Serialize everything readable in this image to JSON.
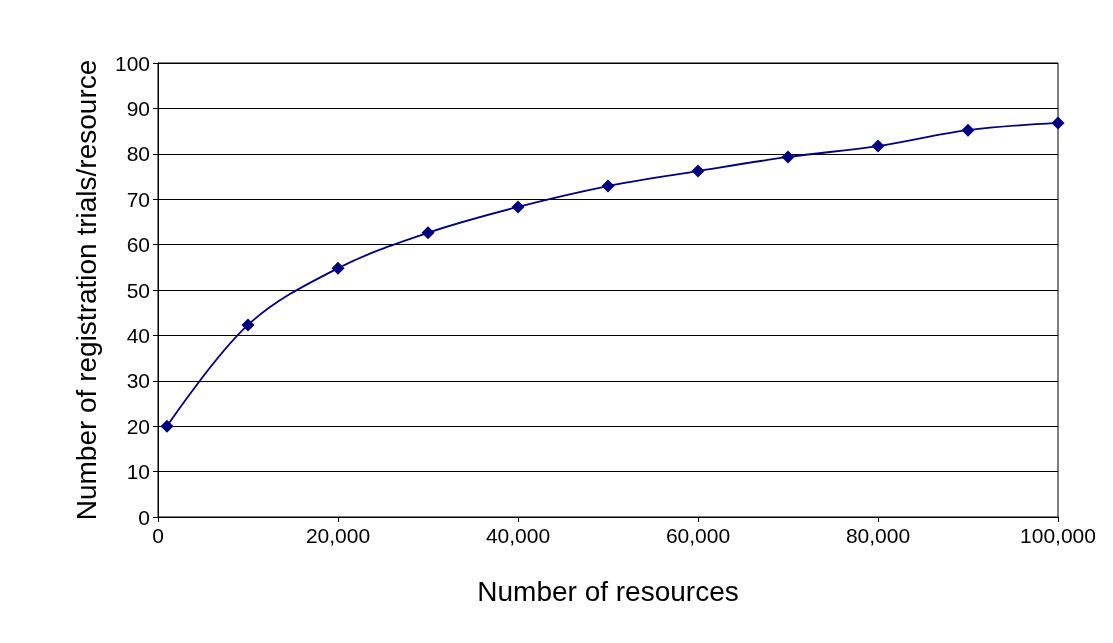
{
  "chart_data": {
    "type": "line",
    "xlabel": "Number of resources",
    "ylabel": "Number of registration trials/resource",
    "x": [
      1000,
      10000,
      20000,
      30000,
      40000,
      50000,
      60000,
      70000,
      80000,
      90000,
      100000
    ],
    "series": [
      {
        "color": "#000080",
        "values": [
          20,
          42.3,
          54.8,
          62.6,
          68.3,
          72.9,
          76.2,
          79.3,
          81.7,
          85.2,
          86.8
        ]
      }
    ],
    "xlim": [
      0,
      100000
    ],
    "xticks": [
      0,
      {
        "value": 20000,
        "label": "20,000"
      },
      {
        "value": 40000,
        "label": "40,000"
      },
      {
        "value": 60000,
        "label": "60,000"
      },
      {
        "value": 80000,
        "label": "80,000"
      },
      {
        "value": 100000,
        "label": "100,000"
      }
    ],
    "ylim": [
      0,
      100
    ],
    "yticks": [
      0,
      10,
      20,
      30,
      40,
      50,
      60,
      70,
      80,
      90,
      100
    ],
    "grid": "y",
    "marker": "diamond",
    "line_style": "solid"
  }
}
